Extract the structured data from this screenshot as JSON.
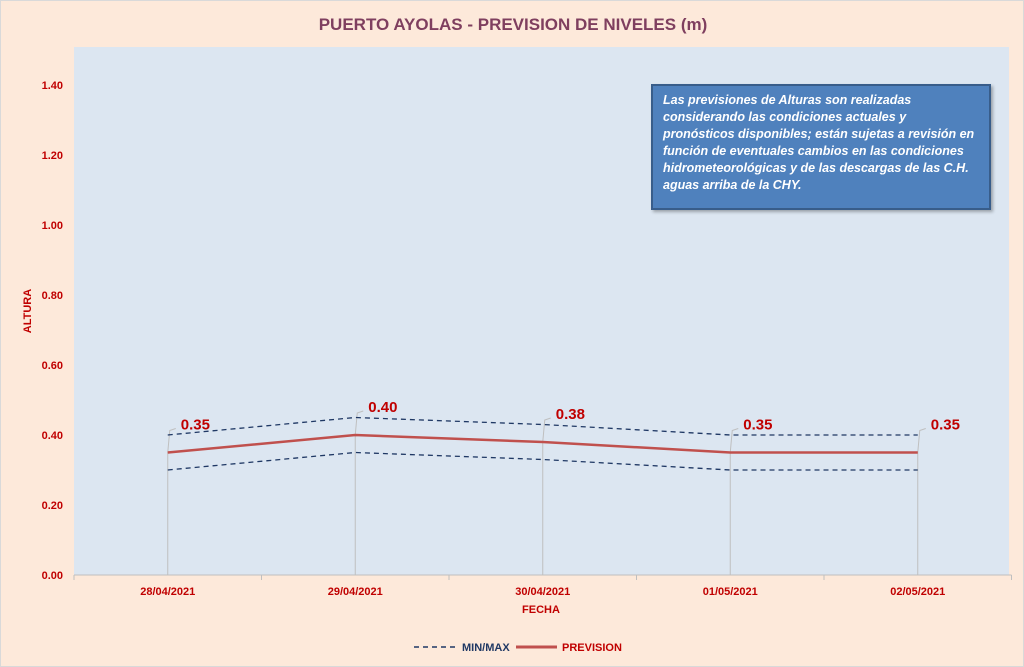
{
  "chart_data": {
    "type": "line",
    "title": "PUERTO AYOLAS - PREVISION DE NIVELES (m)",
    "xlabel": "FECHA",
    "ylabel": "ALTURA",
    "ylim": [
      0,
      1.4
    ],
    "yticks": [
      "0.00",
      "0.20",
      "0.40",
      "0.60",
      "0.80",
      "1.00",
      "1.20",
      "1.40"
    ],
    "categories": [
      "28/04/2021",
      "29/04/2021",
      "30/04/2021",
      "01/05/2021",
      "02/05/2021"
    ],
    "series": [
      {
        "name": "MIN/MAX",
        "style": "dashed",
        "color": "#1f3864",
        "max": [
          0.4,
          0.45,
          0.43,
          0.4,
          0.4
        ],
        "min": [
          0.3,
          0.35,
          0.33,
          0.3,
          0.3
        ]
      },
      {
        "name": "PREVISION",
        "style": "solid",
        "color": "#c0504d",
        "values": [
          0.35,
          0.4,
          0.38,
          0.35,
          0.35
        ]
      }
    ],
    "data_labels": [
      "0.35",
      "0.40",
      "0.38",
      "0.35",
      "0.35"
    ],
    "legend": "bottom",
    "grid": false
  },
  "note": "Las previsiones de Alturas son realizadas considerando las condiciones actuales y pronósticos disponibles;  están sujetas a revisión en función de eventuales cambios en las condiciones hidrometeorológicas y de las descargas de las C.H. aguas arriba de la CHY."
}
